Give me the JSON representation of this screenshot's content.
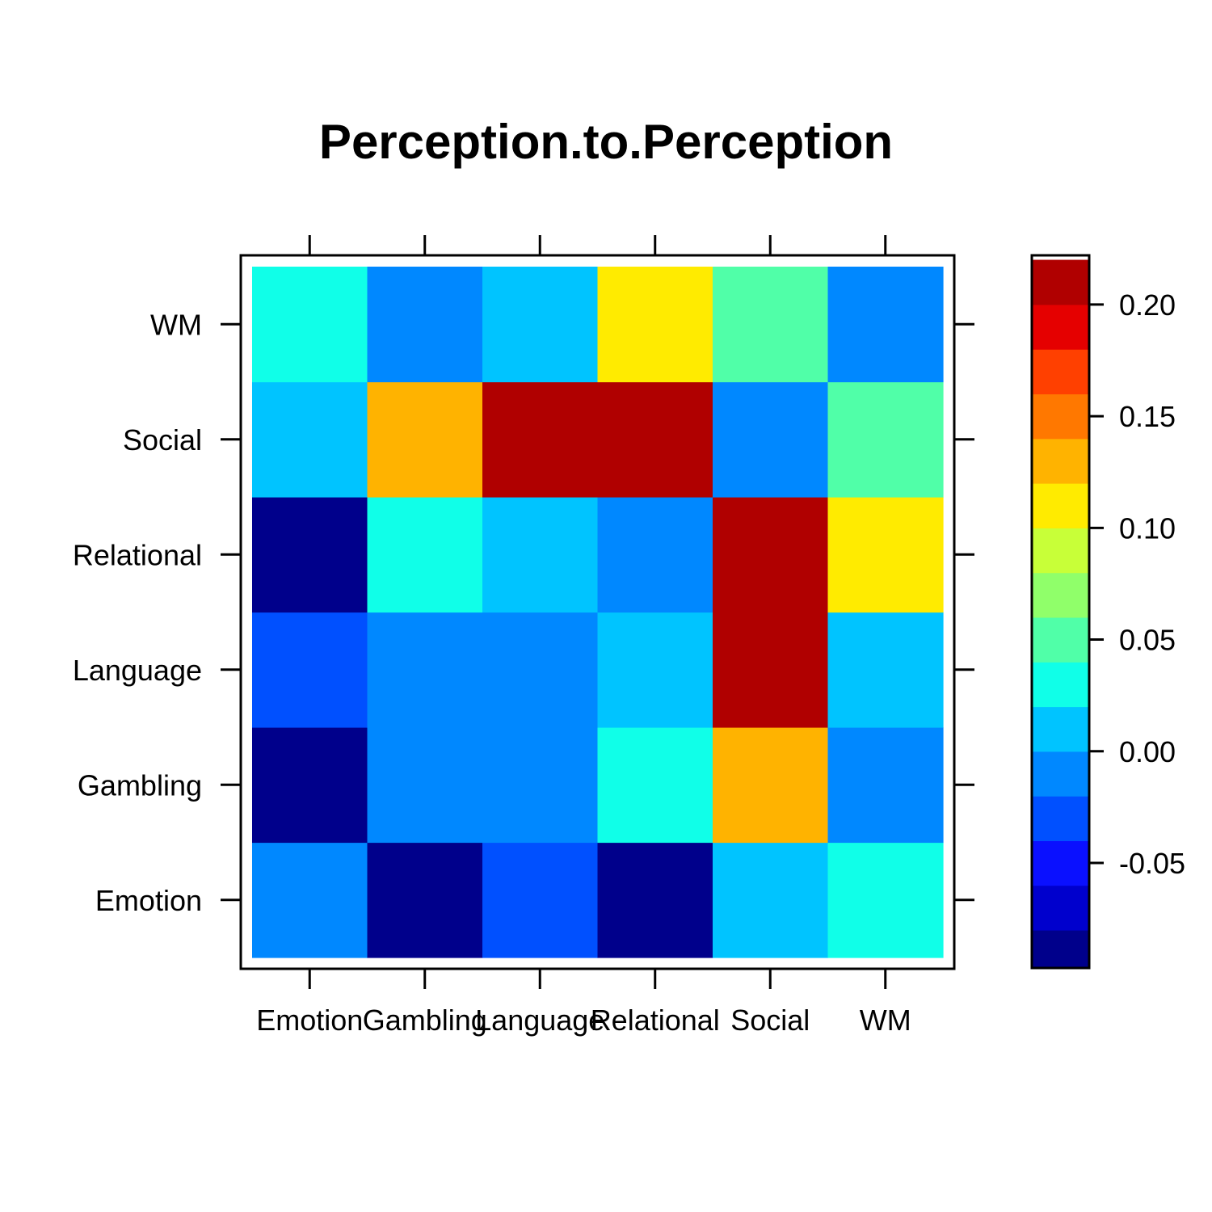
{
  "chart_data": {
    "type": "heatmap",
    "title": "Perception.to.Perception",
    "x_categories": [
      "Emotion",
      "Gambling",
      "Language",
      "Relational",
      "Social",
      "WM"
    ],
    "y_categories": [
      "Emotion",
      "Gambling",
      "Language",
      "Relational",
      "Social",
      "WM"
    ],
    "values": [
      [
        -0.005,
        -0.085,
        -0.035,
        -0.095,
        0.015,
        0.035
      ],
      [
        -0.085,
        -0.005,
        -0.005,
        0.035,
        0.135,
        -0.005
      ],
      [
        -0.035,
        -0.005,
        -0.005,
        0.015,
        0.215,
        0.015
      ],
      [
        -0.095,
        0.035,
        0.015,
        -0.005,
        0.215,
        0.115
      ],
      [
        0.015,
        0.135,
        0.215,
        0.215,
        -0.005,
        0.055
      ],
      [
        0.035,
        -0.005,
        0.015,
        0.115,
        0.055,
        -0.005
      ]
    ],
    "colorbar": {
      "breaks": [
        -0.1,
        -0.08,
        -0.06,
        -0.04,
        -0.02,
        0.0,
        0.02,
        0.04,
        0.06,
        0.08,
        0.1,
        0.12,
        0.14,
        0.16,
        0.18,
        0.2,
        0.22
      ],
      "colors": [
        "#00008B",
        "#0000CD",
        "#0A10FF",
        "#0050FF",
        "#0088FF",
        "#00C4FF",
        "#10FFE8",
        "#50FFA8",
        "#90FF6A",
        "#C8FF38",
        "#FFEB00",
        "#FFB300",
        "#FF7800",
        "#FF4000",
        "#E50000",
        "#B00000"
      ],
      "ticks": [
        -0.05,
        0.0,
        0.05,
        0.1,
        0.15,
        0.2
      ],
      "tick_labels": [
        "-0.05",
        "0.00",
        "0.05",
        "0.10",
        "0.15",
        "0.20"
      ],
      "range": [
        -0.097,
        0.222
      ]
    }
  }
}
